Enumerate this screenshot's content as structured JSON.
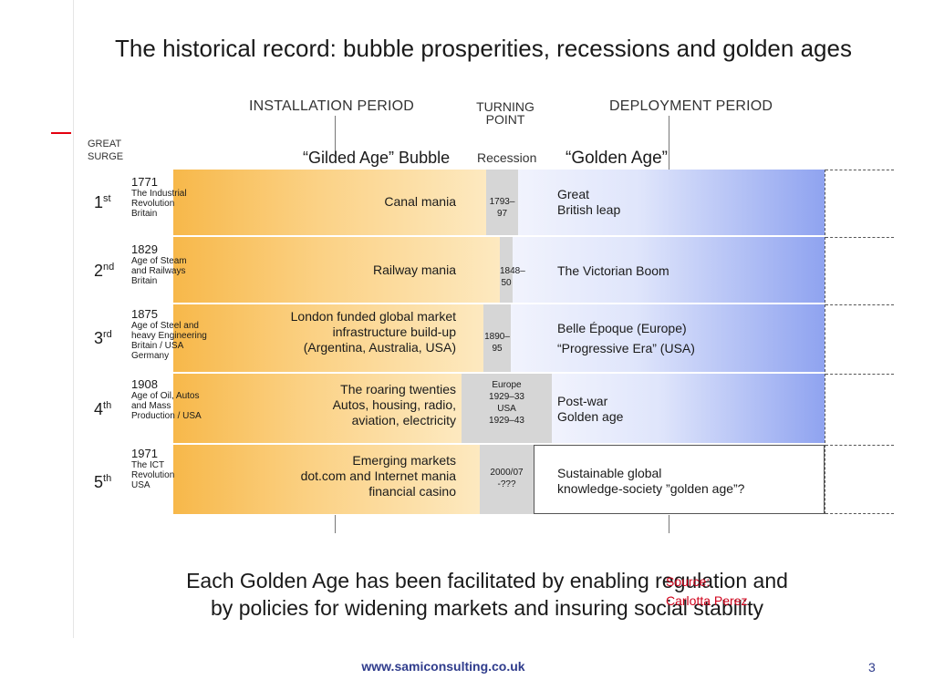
{
  "title": "The historical record: bubble prosperities, recessions and golden ages",
  "headers": {
    "installation": "INSTALLATION PERIOD",
    "turning_line1": "TURNING",
    "turning_line2": "POINT",
    "deployment": "DEPLOYMENT PERIOD",
    "great_surge_line1": "GREAT",
    "great_surge_line2": "SURGE",
    "gilded": "“Gilded Age” Bubble",
    "recession": "Recession",
    "golden": "“Golden Age”"
  },
  "surges": [
    {
      "ordinal_num": "1",
      "ordinal_suffix": "st",
      "year": "1771",
      "description": [
        "The Industrial",
        "Revolution",
        "Britain"
      ],
      "installation": [
        "Canal mania"
      ],
      "turning": [
        "1793–97"
      ],
      "deployment": [
        "Great",
        "British leap"
      ],
      "deployment_white": false
    },
    {
      "ordinal_num": "2",
      "ordinal_suffix": "nd",
      "year": "1829",
      "description": [
        "Age of Steam",
        "and Railways",
        "Britain"
      ],
      "installation": [
        "Railway mania"
      ],
      "turning": [
        "1848–50"
      ],
      "deployment": [
        "The Victorian  Boom"
      ],
      "deployment_white": false
    },
    {
      "ordinal_num": "3",
      "ordinal_suffix": "rd",
      "year": "1875",
      "description": [
        "Age of Steel and",
        "heavy Engineering",
        "Britain / USA",
        "Germany"
      ],
      "installation": [
        "London funded global market",
        "infrastructure build-up",
        "(Argentina, Australia, USA)"
      ],
      "turning": [
        "1890–95"
      ],
      "deployment": [
        "Belle Époque (Europe)",
        "“Progressive Era” (USA)"
      ],
      "deployment_white": false
    },
    {
      "ordinal_num": "4",
      "ordinal_suffix": "th",
      "year": "1908",
      "description": [
        "Age of Oil, Autos",
        "and Mass",
        "Production / USA"
      ],
      "installation": [
        "The roaring twenties",
        "Autos, housing, radio,",
        "aviation, electricity"
      ],
      "turning": [
        "Europe",
        "1929–33",
        "USA",
        "1929–43"
      ],
      "deployment": [
        "Post-war",
        "Golden age"
      ],
      "deployment_white": false
    },
    {
      "ordinal_num": "5",
      "ordinal_suffix": "th",
      "year": "1971",
      "description": [
        "The ICT",
        "Revolution",
        "USA"
      ],
      "installation": [
        "Emerging markets",
        "dot.com  and Internet mania",
        "financial casino"
      ],
      "turning": [
        "2000/07",
        "-???"
      ],
      "deployment": [
        "Sustainable global",
        "knowledge-society ”golden age”?"
      ],
      "deployment_white": true
    }
  ],
  "closing": {
    "line1": "Each Golden Age has been facilitated by enabling regulation and",
    "line2": "by policies for widening markets and insuring social stability"
  },
  "source": {
    "line1": "Source:",
    "line2": "Carlotta Perez"
  },
  "footer": {
    "url": "www.samiconsulting.co.uk",
    "page": "3"
  },
  "colors": {
    "installation_band": "#f7b84a",
    "turning_band": "#d6d6d6",
    "deployment_band": "#8fa3f0",
    "source_text": "#d0021b",
    "footer_text": "#2f3c8c"
  }
}
